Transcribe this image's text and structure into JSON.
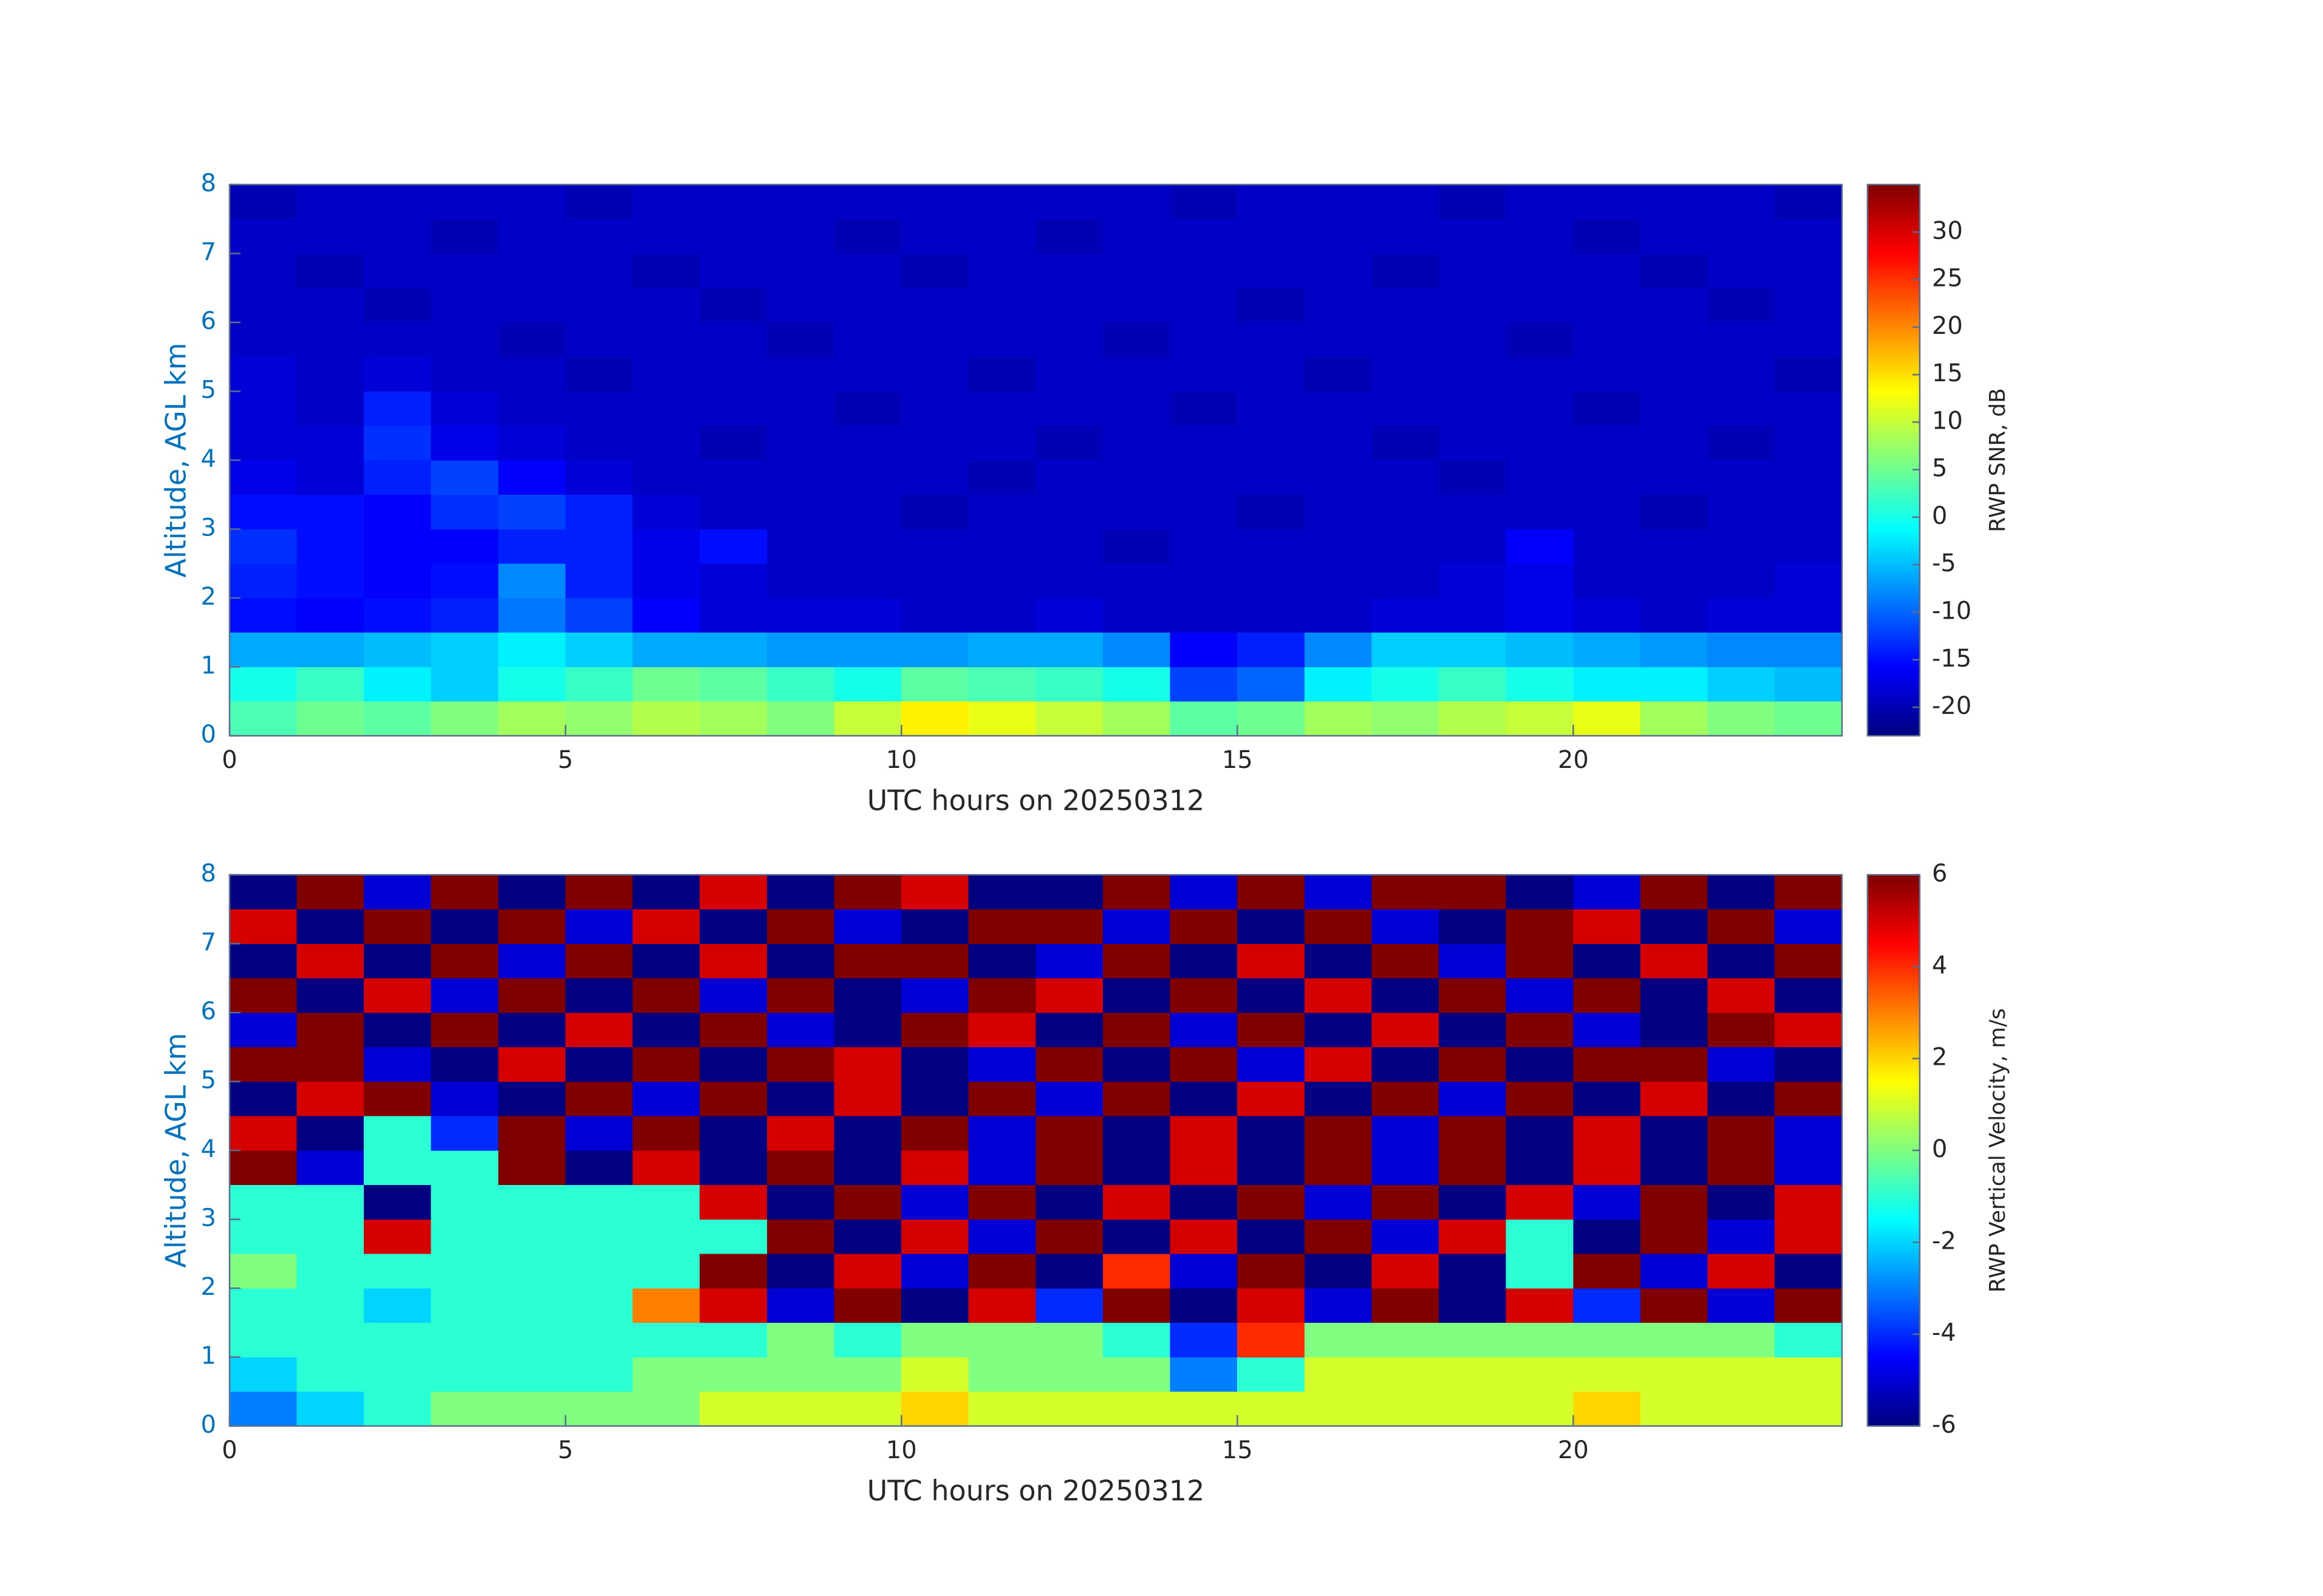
{
  "chart_data": [
    {
      "type": "heatmap",
      "xlabel": "UTC hours on 20250312",
      "ylabel": "Altitude, AGL km",
      "ylabel_color": "#0072bd",
      "colorbar_label": "RWP SNR, dB",
      "colormap": "jet",
      "xlim": [
        0,
        24
      ],
      "ylim": [
        0,
        8
      ],
      "xticks": [
        0,
        5,
        10,
        15,
        20
      ],
      "yticks": [
        0,
        1,
        2,
        3,
        4,
        5,
        6,
        7,
        8
      ],
      "clim": [
        -23,
        35
      ],
      "cticks": [
        -20,
        -15,
        -10,
        -5,
        0,
        5,
        10,
        15,
        20,
        25,
        30
      ],
      "x_bins": [
        0,
        1,
        2,
        3,
        4,
        5,
        6,
        7,
        8,
        9,
        10,
        11,
        12,
        13,
        14,
        15,
        16,
        17,
        18,
        19,
        20,
        21,
        22,
        23,
        24
      ],
      "y_bins": [
        0,
        0.5,
        1,
        1.5,
        2,
        2.5,
        3,
        3.5,
        4,
        4.5,
        5,
        5.5,
        6,
        6.5,
        7,
        7.5,
        8
      ],
      "z": [
        [
          3,
          5,
          4,
          6,
          8,
          7,
          9,
          8,
          6,
          10,
          14,
          12,
          10,
          8,
          4,
          5,
          8,
          7,
          9,
          10,
          12,
          8,
          6,
          5
        ],
        [
          0,
          2,
          -2,
          -4,
          0,
          2,
          5,
          4,
          2,
          0,
          4,
          3,
          2,
          0,
          -12,
          -10,
          -2,
          0,
          2,
          0,
          -2,
          -2,
          -4,
          -5
        ],
        [
          -6,
          -6,
          -5,
          -4,
          -2,
          -4,
          -6,
          -6,
          -7,
          -7,
          -7,
          -6,
          -6,
          -8,
          -16,
          -14,
          -8,
          -4,
          -4,
          -5,
          -6,
          -7,
          -8,
          -8
        ],
        [
          -15,
          -16,
          -15,
          -14,
          -9,
          -12,
          -16,
          -18,
          -18,
          -18,
          -19,
          -19,
          -18,
          -19,
          -19,
          -19,
          -19,
          -18,
          -18,
          -17,
          -18,
          -19,
          -18,
          -18
        ],
        [
          -14,
          -15,
          -16,
          -15,
          -8,
          -14,
          -17,
          -18,
          -19,
          -19,
          -19,
          -19,
          -19,
          -19,
          -19,
          -19,
          -19,
          -19,
          -18,
          -17,
          -19,
          -19,
          -19,
          -18
        ],
        [
          -13,
          -15,
          -16,
          -16,
          -14,
          -14,
          -17,
          -15,
          -19,
          -19,
          -19,
          -19,
          -19,
          -20,
          -19,
          -19,
          -19,
          -19,
          -19,
          -16,
          -19,
          -19,
          -19,
          -19
        ],
        [
          -15,
          -15,
          -16,
          -13,
          -12,
          -14,
          -18,
          -19,
          -19,
          -19,
          -20,
          -19,
          -19,
          -19,
          -19,
          -20,
          -19,
          -19,
          -19,
          -19,
          -19,
          -20,
          -19,
          -19
        ],
        [
          -17,
          -18,
          -14,
          -12,
          -16,
          -18,
          -19,
          -19,
          -19,
          -19,
          -19,
          -20,
          -19,
          -19,
          -19,
          -19,
          -19,
          -19,
          -20,
          -19,
          -19,
          -19,
          -19,
          -19
        ],
        [
          -18,
          -18,
          -13,
          -17,
          -18,
          -19,
          -19,
          -20,
          -19,
          -19,
          -19,
          -19,
          -20,
          -19,
          -19,
          -19,
          -19,
          -20,
          -19,
          -19,
          -19,
          -19,
          -20,
          -19
        ],
        [
          -18,
          -19,
          -14,
          -18,
          -19,
          -19,
          -19,
          -19,
          -19,
          -20,
          -19,
          -19,
          -19,
          -19,
          -20,
          -19,
          -19,
          -19,
          -19,
          -19,
          -20,
          -19,
          -19,
          -19
        ],
        [
          -18,
          -19,
          -18,
          -19,
          -19,
          -20,
          -19,
          -19,
          -19,
          -19,
          -19,
          -20,
          -19,
          -19,
          -19,
          -19,
          -20,
          -19,
          -19,
          -19,
          -19,
          -19,
          -19,
          -20
        ],
        [
          -19,
          -19,
          -19,
          -19,
          -20,
          -19,
          -19,
          -19,
          -20,
          -19,
          -19,
          -19,
          -19,
          -20,
          -19,
          -19,
          -19,
          -19,
          -19,
          -20,
          -19,
          -19,
          -19,
          -19
        ],
        [
          -19,
          -19,
          -20,
          -19,
          -19,
          -19,
          -19,
          -20,
          -19,
          -19,
          -19,
          -19,
          -19,
          -19,
          -19,
          -20,
          -19,
          -19,
          -19,
          -19,
          -19,
          -19,
          -20,
          -19
        ],
        [
          -19,
          -20,
          -19,
          -19,
          -19,
          -19,
          -20,
          -19,
          -19,
          -19,
          -20,
          -19,
          -19,
          -19,
          -19,
          -19,
          -19,
          -20,
          -19,
          -19,
          -19,
          -20,
          -19,
          -19
        ],
        [
          -19,
          -19,
          -19,
          -20,
          -19,
          -19,
          -19,
          -19,
          -19,
          -20,
          -19,
          -19,
          -20,
          -19,
          -19,
          -19,
          -19,
          -19,
          -19,
          -19,
          -20,
          -19,
          -19,
          -19
        ],
        [
          -20,
          -19,
          -19,
          -19,
          -19,
          -20,
          -19,
          -19,
          -19,
          -19,
          -19,
          -19,
          -19,
          -19,
          -20,
          -19,
          -19,
          -19,
          -20,
          -19,
          -19,
          -19,
          -19,
          -20
        ]
      ]
    },
    {
      "type": "heatmap",
      "xlabel": "UTC hours on 20250312",
      "ylabel": "Altitude, AGL km",
      "ylabel_color": "#0072bd",
      "colorbar_label": "RWP Vertical Velocity, m/s",
      "colormap": "jet",
      "xlim": [
        0,
        24
      ],
      "ylim": [
        0,
        8
      ],
      "xticks": [
        0,
        5,
        10,
        15,
        20
      ],
      "yticks": [
        0,
        1,
        2,
        3,
        4,
        5,
        6,
        7,
        8
      ],
      "clim": [
        -6,
        6
      ],
      "cticks": [
        -6,
        -4,
        -2,
        0,
        2,
        4,
        6
      ],
      "x_bins": [
        0,
        1,
        2,
        3,
        4,
        5,
        6,
        7,
        8,
        9,
        10,
        11,
        12,
        13,
        14,
        15,
        16,
        17,
        18,
        19,
        20,
        21,
        22,
        23,
        24
      ],
      "y_bins": [
        0,
        0.5,
        1,
        1.5,
        2,
        2.5,
        3,
        3.5,
        4,
        4.5,
        5,
        5.5,
        6,
        6.5,
        7,
        7.5,
        8
      ],
      "z": [
        [
          -3,
          -2,
          -1,
          0,
          0,
          0,
          0,
          1,
          1,
          1,
          2,
          1,
          1,
          1,
          1,
          1,
          1,
          1,
          1,
          1,
          2,
          1,
          1,
          1
        ],
        [
          -2,
          -1,
          -1,
          -1,
          -1,
          -1,
          0,
          0,
          0,
          0,
          1,
          0,
          0,
          0,
          -3,
          -1,
          1,
          1,
          1,
          1,
          1,
          1,
          1,
          1
        ],
        [
          -1,
          -1,
          -1,
          -1,
          -1,
          -1,
          -1,
          -1,
          0,
          -1,
          0,
          0,
          0,
          -1,
          -4,
          4,
          0,
          0,
          0,
          0,
          0,
          0,
          0,
          -1
        ],
        [
          -1,
          -1,
          -2,
          -1,
          -1,
          -1,
          3,
          5,
          -5,
          6,
          -6,
          5,
          -4,
          6,
          -6,
          5,
          -5,
          6,
          -6,
          5,
          -4,
          6,
          -5,
          6
        ],
        [
          0,
          -1,
          -1,
          -1,
          -1,
          -1,
          -1,
          6,
          -6,
          5,
          -5,
          6,
          -6,
          4,
          -5,
          6,
          -6,
          5,
          -6,
          -1,
          6,
          -5,
          5,
          -6
        ],
        [
          -1,
          -1,
          5,
          -1,
          -1,
          -1,
          -1,
          -1,
          6,
          -6,
          5,
          -5,
          6,
          -6,
          5,
          -6,
          6,
          -5,
          5,
          -1,
          -6,
          6,
          -5,
          5
        ],
        [
          -1,
          -1,
          -6,
          -1,
          -1,
          -1,
          -1,
          5,
          -6,
          6,
          -5,
          6,
          -6,
          5,
          -6,
          6,
          -5,
          6,
          -6,
          5,
          -5,
          6,
          -6,
          5
        ],
        [
          6,
          -5,
          -1,
          -1,
          6,
          -6,
          5,
          -6,
          6,
          -6,
          5,
          -5,
          6,
          -6,
          5,
          -6,
          6,
          -5,
          6,
          -6,
          5,
          -6,
          6,
          -5
        ],
        [
          5,
          -6,
          -1,
          -4,
          6,
          -5,
          6,
          -6,
          5,
          -6,
          6,
          -5,
          6,
          -6,
          5,
          -6,
          6,
          -5,
          6,
          -6,
          5,
          -6,
          6,
          -5
        ],
        [
          -6,
          5,
          6,
          -5,
          -6,
          6,
          -5,
          6,
          -6,
          5,
          -6,
          6,
          -5,
          6,
          -6,
          5,
          -6,
          6,
          -5,
          6,
          -6,
          5,
          -6,
          6
        ],
        [
          6,
          6,
          -5,
          -6,
          5,
          -6,
          6,
          -6,
          6,
          5,
          -6,
          -5,
          6,
          -6,
          6,
          -5,
          5,
          -6,
          6,
          -6,
          6,
          6,
          -5,
          -6
        ],
        [
          -5,
          6,
          -6,
          6,
          -6,
          5,
          -6,
          6,
          -5,
          -6,
          6,
          5,
          -6,
          6,
          -5,
          6,
          -6,
          5,
          -6,
          6,
          -5,
          -6,
          6,
          5
        ],
        [
          6,
          -6,
          5,
          -5,
          6,
          -6,
          6,
          -5,
          6,
          -6,
          -5,
          6,
          5,
          -6,
          6,
          -6,
          5,
          -6,
          6,
          -5,
          6,
          -6,
          5,
          -6
        ],
        [
          -6,
          5,
          -6,
          6,
          -5,
          6,
          -6,
          5,
          -6,
          6,
          6,
          -6,
          -5,
          6,
          -6,
          5,
          -6,
          6,
          -5,
          6,
          -6,
          5,
          -6,
          6
        ],
        [
          5,
          -6,
          6,
          -6,
          6,
          -5,
          5,
          -6,
          6,
          -5,
          -6,
          6,
          6,
          -5,
          6,
          -6,
          6,
          -5,
          -6,
          6,
          5,
          -6,
          6,
          -5
        ],
        [
          -6,
          6,
          -5,
          6,
          -6,
          6,
          -6,
          5,
          -6,
          6,
          5,
          -6,
          -6,
          6,
          -5,
          6,
          -5,
          6,
          6,
          -6,
          -5,
          6,
          -6,
          6
        ]
      ]
    }
  ]
}
